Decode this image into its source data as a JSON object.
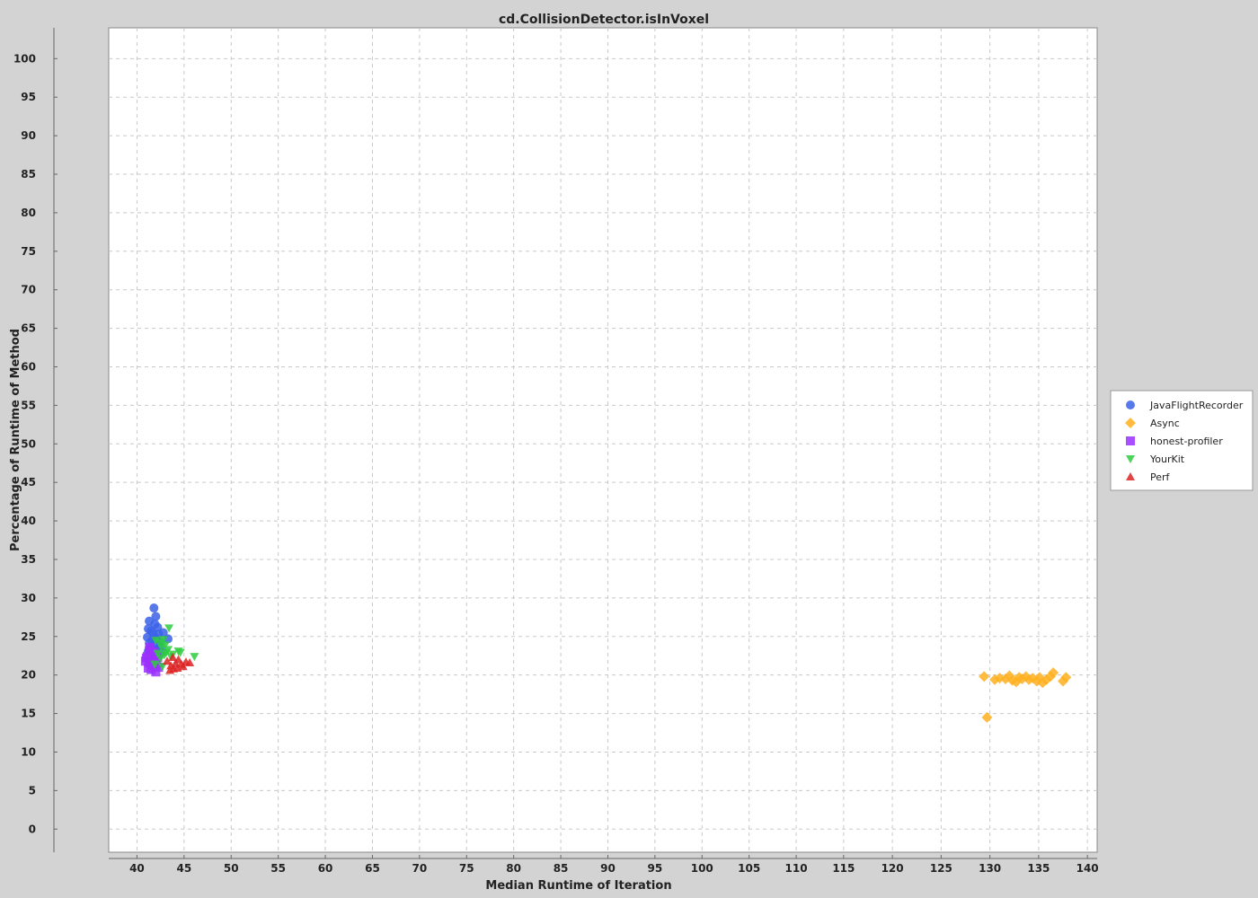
{
  "chart_data": {
    "type": "scatter",
    "title": "cd.CollisionDetector.isInVoxel",
    "xlabel": "Median Runtime of Iteration",
    "ylabel": "Percentage of Runtime of Method",
    "ylim": [
      -3,
      104
    ],
    "y_ticks": [
      0,
      5,
      10,
      15,
      20,
      25,
      30,
      35,
      40,
      45,
      50,
      55,
      60,
      65,
      70,
      75,
      80,
      85,
      90,
      95,
      100
    ],
    "x_segments": [
      {
        "domain": [
          37,
          114
        ],
        "ticks": [
          40,
          45,
          50,
          55,
          60,
          65,
          70,
          75,
          80,
          85,
          90,
          95,
          100,
          105,
          110
        ]
      },
      {
        "domain": [
          114,
          141
        ],
        "ticks": [
          115,
          120,
          125,
          130,
          135,
          140
        ]
      }
    ],
    "grid": true,
    "legend_position": "right",
    "series": [
      {
        "name": "JavaFlightRecorder",
        "marker": "circle",
        "color": "#3b62e8",
        "points": [
          [
            41.8,
            28.7
          ],
          [
            42.0,
            27.6
          ],
          [
            41.3,
            27.0
          ],
          [
            41.9,
            26.6
          ],
          [
            42.2,
            26.2
          ],
          [
            41.2,
            26.0
          ],
          [
            41.5,
            25.7
          ],
          [
            42.8,
            25.5
          ],
          [
            41.7,
            25.4
          ],
          [
            42.3,
            25.3
          ],
          [
            41.1,
            24.9
          ],
          [
            42.0,
            24.8
          ],
          [
            43.3,
            24.7
          ],
          [
            41.6,
            24.5
          ],
          [
            42.5,
            24.3
          ],
          [
            41.3,
            24.1
          ],
          [
            41.9,
            23.9
          ],
          [
            42.4,
            23.7
          ],
          [
            41.5,
            23.5
          ],
          [
            42.1,
            23.3
          ],
          [
            41.2,
            23.1
          ],
          [
            42.7,
            23.0
          ],
          [
            41.8,
            22.8
          ],
          [
            42.3,
            22.5
          ]
        ]
      },
      {
        "name": "Async",
        "marker": "diamond",
        "color": "#ffb020",
        "points": [
          [
            129.4,
            19.8
          ],
          [
            129.7,
            14.5
          ],
          [
            130.5,
            19.4
          ],
          [
            131.0,
            19.6
          ],
          [
            131.6,
            19.5
          ],
          [
            132.0,
            19.9
          ],
          [
            132.3,
            19.3
          ],
          [
            132.7,
            19.1
          ],
          [
            133.0,
            19.7
          ],
          [
            133.3,
            19.5
          ],
          [
            133.7,
            19.8
          ],
          [
            134.0,
            19.4
          ],
          [
            134.4,
            19.6
          ],
          [
            134.8,
            19.2
          ],
          [
            135.1,
            19.7
          ],
          [
            135.4,
            19.0
          ],
          [
            135.8,
            19.4
          ],
          [
            136.2,
            19.8
          ],
          [
            136.5,
            20.3
          ],
          [
            137.5,
            19.2
          ],
          [
            137.8,
            19.7
          ]
        ]
      },
      {
        "name": "honest-profiler",
        "marker": "square",
        "color": "#9b30ff",
        "points": [
          [
            40.9,
            21.8
          ],
          [
            41.1,
            22.4
          ],
          [
            41.3,
            23.2
          ],
          [
            41.5,
            22.0
          ],
          [
            41.7,
            21.3
          ],
          [
            41.2,
            20.9
          ],
          [
            41.9,
            22.7
          ],
          [
            42.1,
            21.5
          ],
          [
            41.4,
            23.6
          ],
          [
            41.6,
            22.9
          ],
          [
            42.0,
            20.4
          ],
          [
            41.8,
            21.9
          ],
          [
            41.0,
            22.2
          ],
          [
            42.3,
            21.0
          ],
          [
            41.5,
            20.7
          ],
          [
            41.3,
            21.6
          ],
          [
            42.2,
            22.3
          ],
          [
            41.7,
            23.0
          ]
        ]
      },
      {
        "name": "YourKit",
        "marker": "triangle-down",
        "color": "#2ecc40",
        "points": [
          [
            43.4,
            26.1
          ],
          [
            42.0,
            24.5
          ],
          [
            42.4,
            24.2
          ],
          [
            42.8,
            24.6
          ],
          [
            43.0,
            23.9
          ],
          [
            42.6,
            23.6
          ],
          [
            43.3,
            23.3
          ],
          [
            44.4,
            23.1
          ],
          [
            44.6,
            22.9
          ],
          [
            42.2,
            22.8
          ],
          [
            42.9,
            22.6
          ],
          [
            43.6,
            22.4
          ],
          [
            42.5,
            22.2
          ],
          [
            46.1,
            22.4
          ],
          [
            41.9,
            21.4
          ],
          [
            42.7,
            21.1
          ],
          [
            43.8,
            22.7
          ],
          [
            43.1,
            22.9
          ]
        ]
      },
      {
        "name": "Perf",
        "marker": "triangle-up",
        "color": "#dd2222",
        "points": [
          [
            43.2,
            21.8
          ],
          [
            43.6,
            21.2
          ],
          [
            43.9,
            20.8
          ],
          [
            44.1,
            21.5
          ],
          [
            44.4,
            22.0
          ],
          [
            44.7,
            21.4
          ],
          [
            45.2,
            21.7
          ],
          [
            45.6,
            21.6
          ],
          [
            43.8,
            22.3
          ],
          [
            44.3,
            20.9
          ],
          [
            43.5,
            20.6
          ],
          [
            44.9,
            21.1
          ]
        ]
      }
    ]
  }
}
